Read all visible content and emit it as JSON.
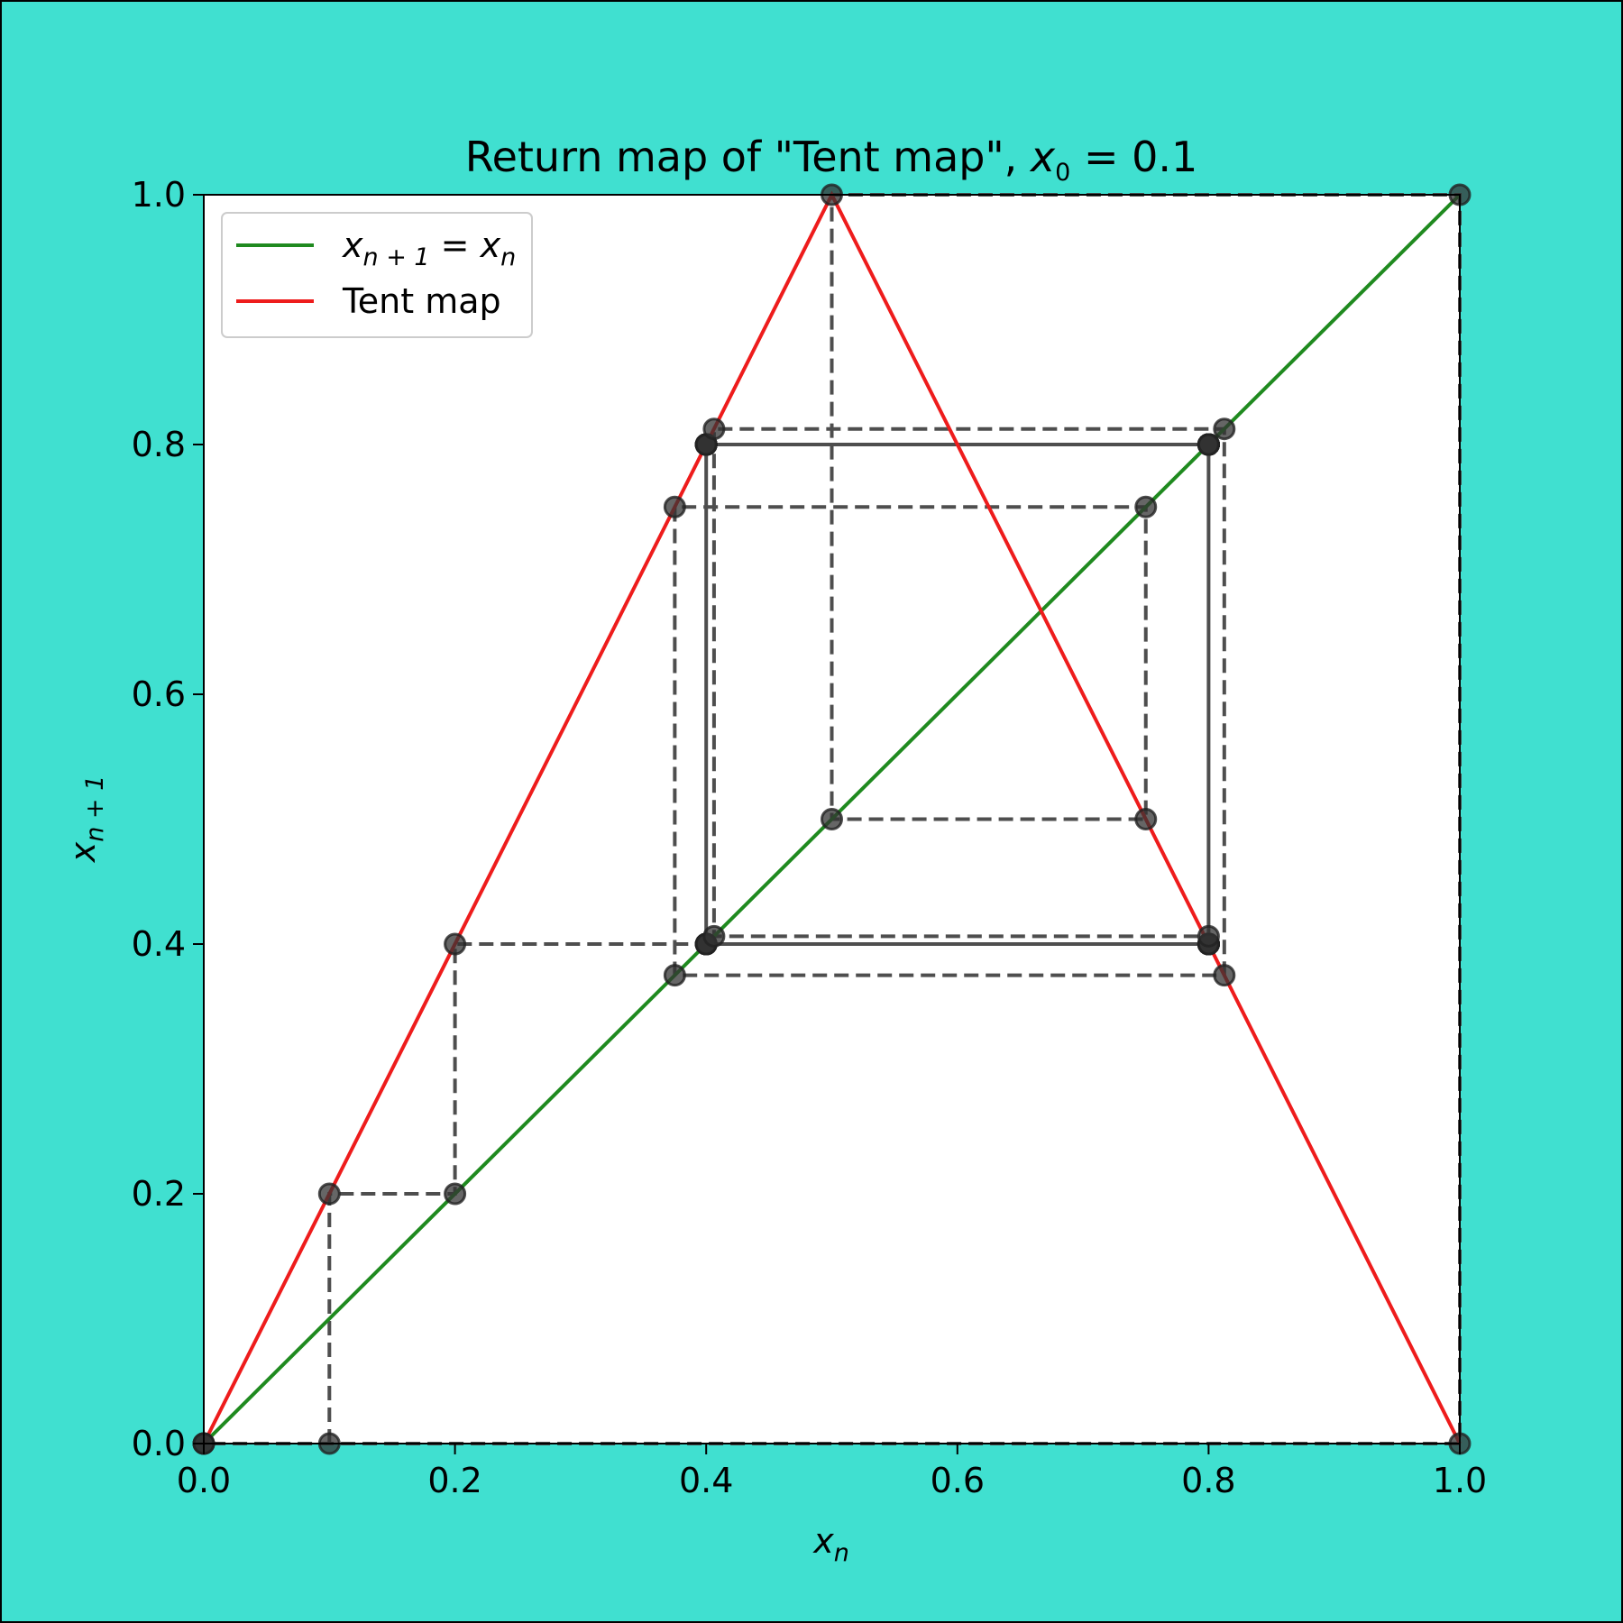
{
  "chart_data": {
    "type": "line",
    "title": "Return map of \"Tent map\", ",
    "title_math": {
      "var": "x",
      "sub": "0",
      "rest": " = 0.1"
    },
    "xlabel": {
      "var": "x",
      "sub": "n"
    },
    "ylabel": {
      "var": "x",
      "sub": "n + 1"
    },
    "xlim": [
      0,
      1
    ],
    "ylim": [
      0,
      1
    ],
    "xticks": [
      "0.0",
      "0.2",
      "0.4",
      "0.6",
      "0.8",
      "1.0"
    ],
    "yticks": [
      "0.0",
      "0.2",
      "0.4",
      "0.6",
      "0.8",
      "1.0"
    ],
    "grid": false,
    "legend_position": "upper-left",
    "series": [
      {
        "name": "x_{n+1} = x_n",
        "legend": {
          "var1": "x",
          "sub1": "n + 1",
          "eq": " = ",
          "var2": "x",
          "sub2": "n"
        },
        "color": "#1f8a1f",
        "style": "solid",
        "x": [
          0,
          1
        ],
        "y": [
          0,
          1
        ]
      },
      {
        "name": "Tent map",
        "legend_label": "Tent map",
        "color": "#ee1c1c",
        "style": "solid",
        "x": [
          0,
          0.5,
          1
        ],
        "y": [
          0,
          1,
          0
        ]
      }
    ],
    "cobweb": {
      "x0": 0.1,
      "color": "#444444",
      "style": "dashed",
      "marker_color": "#333333",
      "iterations": [
        0.1,
        0.2,
        0.4,
        0.8,
        0.4,
        0.8,
        0.4,
        0.8,
        0.4,
        0.8,
        0.4,
        0.8,
        0.4,
        0.8,
        0.4,
        0.8,
        0.4,
        0.8,
        0.4,
        0.8,
        0.4,
        0.8,
        0.4,
        0.8,
        0.4,
        0.8,
        0.4,
        0.8,
        0.4,
        0.8,
        0.4,
        0.8,
        0.4,
        0.8,
        0.40625,
        0.8125,
        0.375,
        0.75,
        0.5,
        1.0,
        0.0,
        0.0
      ]
    }
  }
}
